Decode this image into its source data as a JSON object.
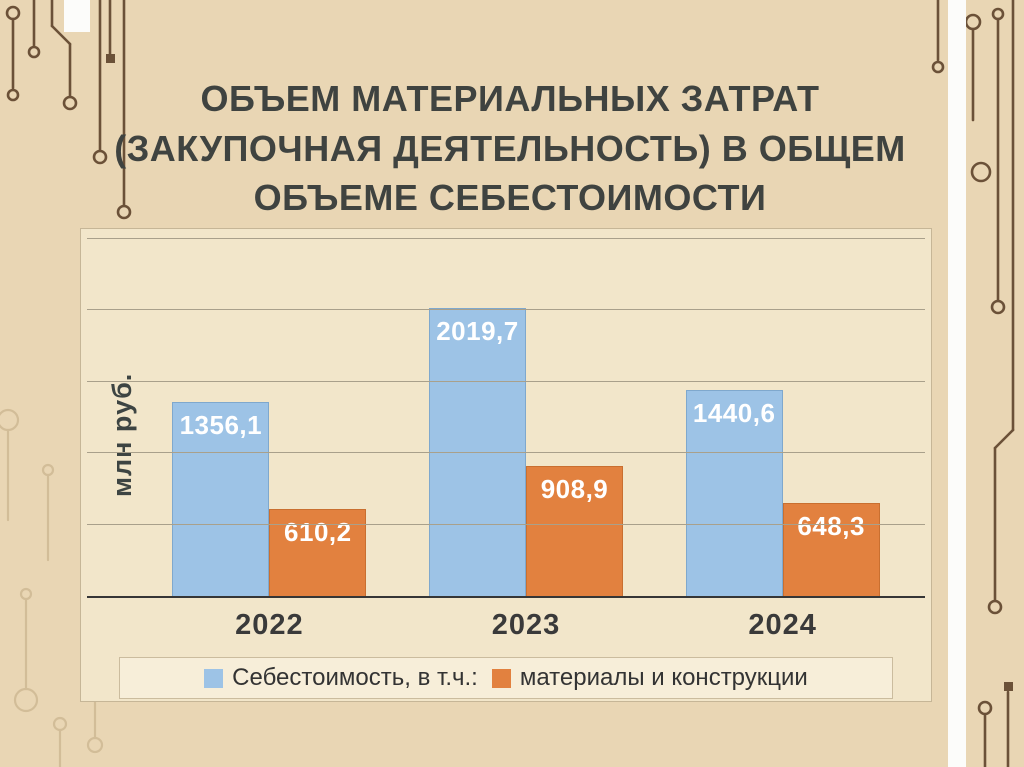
{
  "slide": {
    "title_lines": [
      "ОБЪЕМ МАТЕРИАЛЬНЫХ ЗАТРАТ",
      "(ЗАКУПОЧНАЯ ДЕЯТЕЛЬНОСТЬ) В ОБЩЕМ",
      "ОБЪЕМЕ СЕБЕСТОИМОСТИ"
    ],
    "background_color": "#e9d6b4",
    "panel_color": "#f2e6ca"
  },
  "chart_data": {
    "type": "bar",
    "title": "ОБЪЕМ МАТЕРИАЛЬНЫХ ЗАТРАТ (ЗАКУПОЧНАЯ ДЕЯТЕЛЬНОСТЬ) В ОБЩЕМ ОБЪЕМЕ СЕБЕСТОИМОСТИ",
    "categories": [
      "2022",
      "2023",
      "2024"
    ],
    "series": [
      {
        "name": "Себестоимость, в т.ч.:",
        "color": "#9dc3e6",
        "border": "#7fa8cd",
        "values": [
          1356.1,
          2019.7,
          1440.6
        ],
        "labels": [
          "1356,1",
          "2019,7",
          "1440,6"
        ]
      },
      {
        "name": "материалы и конструкции",
        "color": "#e2813f",
        "border": "#c96f30",
        "values": [
          610.2,
          908.9,
          648.3
        ],
        "labels": [
          "610,2",
          "908,9",
          "648,3"
        ]
      }
    ],
    "xlabel": "",
    "ylabel": "млн руб.",
    "ylim": [
      0,
      2500
    ],
    "gridline_step": 500,
    "grid": true,
    "legend_position": "bottom",
    "value_label_color": "#ffffff"
  }
}
